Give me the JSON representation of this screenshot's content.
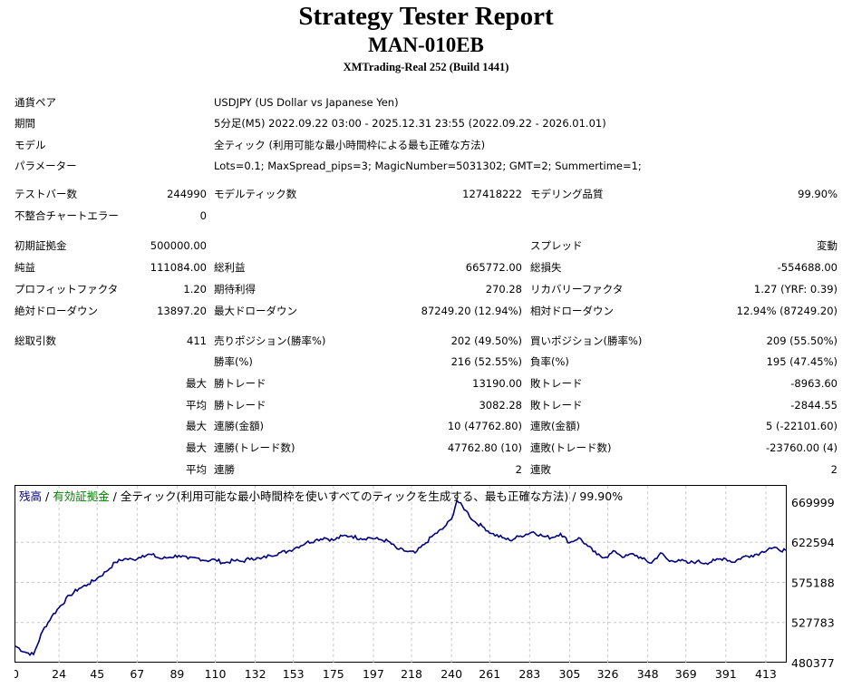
{
  "header": {
    "title": "Strategy Tester Report",
    "ea_name": "MAN-010EB",
    "server": "XMTrading-Real 252 (Build 1441)"
  },
  "settings": {
    "symbol_label": "通貨ペア",
    "symbol": "USDJPY (US Dollar vs Japanese Yen)",
    "period_label": "期間",
    "period": "5分足(M5) 2022.09.22 03:00 - 2025.12.31 23:55 (2022.09.22 - 2026.01.01)",
    "model_label": "モデル",
    "model": "全ティック (利用可能な最小時間枠による最も正確な方法)",
    "params_label": "パラメーター",
    "params": "Lots=0.1; MaxSpread_pips=3; MagicNumber=5031302; GMT=2; Summertime=1;"
  },
  "stats": {
    "bars_label": "テストバー数",
    "bars": "244990",
    "ticks_label": "モデルティック数",
    "ticks": "127418222",
    "quality_label": "モデリング品質",
    "quality": "99.90%",
    "mismatch_label": "不整合チャートエラー",
    "mismatch": "0",
    "deposit_label": "初期証拠金",
    "deposit": "500000.00",
    "spread_label": "スプレッド",
    "spread": "変動",
    "net_label": "純益",
    "net": "111084.00",
    "gross_profit_label": "総利益",
    "gross_profit": "665772.00",
    "gross_loss_label": "総損失",
    "gross_loss": "-554688.00",
    "pf_label": "プロフィットファクタ",
    "pf": "1.20",
    "expected_label": "期待利得",
    "expected": "270.28",
    "recovery_label": "リカバリーファクタ",
    "recovery": "1.27 (YRF: 0.39)",
    "abs_dd_label": "絶対ドローダウン",
    "abs_dd": "13897.20",
    "max_dd_label": "最大ドローダウン",
    "max_dd": "87249.20 (12.94%)",
    "rel_dd_label": "相対ドローダウン",
    "rel_dd": "12.94% (87249.20)",
    "trades_label": "総取引数",
    "trades": "411",
    "short_label": "売りポジション(勝率%)",
    "short": "202 (49.50%)",
    "long_label": "買いポジション(勝率%)",
    "long": "209 (55.50%)",
    "win_rate_label": "勝率(%)",
    "win_rate": "216 (52.55%)",
    "loss_rate_label": "負率(%)",
    "loss_rate": "195 (47.45%)",
    "largest_label": "最大",
    "largest_win_label": "勝トレード",
    "largest_win": "13190.00",
    "largest_loss_label": "敗トレード",
    "largest_loss": "-8963.60",
    "average_label": "平均",
    "avg_win_label": "勝トレード",
    "avg_win": "3082.28",
    "avg_loss_label": "敗トレード",
    "avg_loss": "-2844.55",
    "max_label_1": "最大",
    "max_cons_wins_label": "連勝(金額)",
    "max_cons_wins": "10 (47762.80)",
    "max_cons_losses_label": "連敗(金額)",
    "max_cons_losses": "5 (-22101.60)",
    "max_label_2": "最大",
    "max_cons_profit_label": "連勝(トレード数)",
    "max_cons_profit": "47762.80 (10)",
    "max_cons_loss_label": "連敗(トレード数)",
    "max_cons_loss": "-23760.00 (4)",
    "avg_label_2": "平均",
    "avg_cons_wins_label": "連勝",
    "avg_cons_wins": "2",
    "avg_cons_losses_label": "連敗",
    "avg_cons_losses": "2"
  },
  "chart_data": {
    "type": "line",
    "legend_balance": "残高",
    "legend_sep1": " / ",
    "legend_equity": "有効証拠金",
    "legend_sep2": " / ",
    "legend_rest": "全ティック(利用可能な最小時間枠を使いすべてのティックを生成する、最も正確な方法) / 99.90%",
    "colors": {
      "balance": "#00007f",
      "equity": "#007f00",
      "grid": "#c8c8c8"
    },
    "grid": true,
    "xlim": [
      0,
      424
    ],
    "ylim": [
      480377,
      669999
    ],
    "x_ticks": [
      0,
      24,
      45,
      67,
      89,
      110,
      132,
      153,
      175,
      197,
      218,
      240,
      261,
      283,
      305,
      326,
      348,
      369,
      391,
      413
    ],
    "y_ticks": [
      669999,
      622594,
      575188,
      527783,
      480377
    ],
    "series": [
      {
        "x": [
          0,
          5,
          10,
          15,
          20,
          25,
          30,
          35,
          40,
          45,
          50,
          55,
          60,
          65,
          70,
          75,
          80,
          85,
          90,
          95,
          100,
          105,
          110,
          115,
          120,
          125,
          130,
          135,
          140,
          145,
          150,
          155,
          160,
          165,
          170,
          175,
          180,
          185,
          190,
          195,
          200,
          205,
          210,
          215,
          220,
          225,
          230,
          235,
          240,
          243,
          248,
          252,
          258,
          262,
          268,
          272,
          278,
          285,
          290,
          295,
          300,
          305,
          310,
          315,
          320,
          325,
          330,
          335,
          340,
          345,
          350,
          355,
          360,
          365,
          370,
          375,
          380,
          385,
          390,
          395,
          400,
          405,
          410,
          415,
          420,
          424
        ],
        "y": [
          500000,
          493000,
          490000,
          518000,
          535000,
          548000,
          560000,
          568000,
          573000,
          580000,
          588000,
          599000,
          603000,
          602000,
          607000,
          608000,
          603000,
          605000,
          607000,
          603000,
          604000,
          601000,
          602000,
          598000,
          601000,
          600000,
          604000,
          603000,
          607000,
          610000,
          612000,
          617000,
          622000,
          625000,
          628000,
          625000,
          630000,
          630000,
          627000,
          628000,
          626000,
          624000,
          615000,
          612000,
          610000,
          620000,
          631000,
          638000,
          650000,
          672000,
          660000,
          648000,
          640000,
          633000,
          628000,
          625000,
          630000,
          635000,
          630000,
          628000,
          633000,
          622000,
          628000,
          618000,
          608000,
          605000,
          612000,
          605000,
          609000,
          603000,
          598000,
          610000,
          600000,
          602000,
          598000,
          600000,
          598000,
          601000,
          604000,
          599000,
          605000,
          607000,
          610000,
          616000,
          614000,
          613000
        ]
      }
    ]
  }
}
